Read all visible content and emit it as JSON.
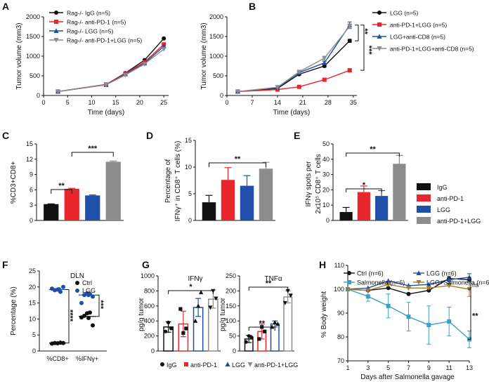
{
  "colors": {
    "black": "#111111",
    "red": "#e8262b",
    "blue": "#1f4fa8",
    "gray": "#8c8c8c",
    "teal": "#3aa0c8",
    "gold": "#a57c2c"
  },
  "panels": {
    "A": "A",
    "B": "B",
    "C": "C",
    "D": "D",
    "E": "E",
    "F": "F",
    "G": "G",
    "H": "H"
  },
  "chart_data": [
    {
      "id": "A",
      "type": "line",
      "xlabel": "Time (days)",
      "ylabel": "Tumor volume (mm3)",
      "xlim": [
        0,
        26
      ],
      "ylim": [
        0,
        2000
      ],
      "xticks": [
        0,
        5,
        10,
        15,
        20,
        25
      ],
      "yticks": [
        0,
        500,
        1000,
        1500,
        2000
      ],
      "x": [
        3,
        13,
        17,
        21,
        25
      ],
      "series": [
        {
          "name": "Rag-/- IgG (n=5)",
          "color": "#111111",
          "marker": "circle",
          "values": [
            100,
            280,
            570,
            900,
            1450
          ]
        },
        {
          "name": "Rag-/- anti-PD-1 (n=5)",
          "color": "#e8262b",
          "marker": "square",
          "values": [
            100,
            280,
            560,
            850,
            1300
          ]
        },
        {
          "name": "Rag-/- LGG (n=5)",
          "color": "#1f4fa8",
          "marker": "triangle",
          "values": [
            100,
            270,
            540,
            820,
            1250
          ]
        },
        {
          "name": "Rag-/- anti-PD-1+LGG (n=5)",
          "color": "#8c8c8c",
          "marker": "triangle-down",
          "values": [
            100,
            270,
            520,
            800,
            1180
          ]
        }
      ]
    },
    {
      "id": "B",
      "type": "line",
      "xlabel": "Time (days)",
      "ylabel": "Tumor volume (mm3)",
      "xlim": [
        0,
        36
      ],
      "ylim": [
        0,
        2000
      ],
      "xticks": [
        0,
        7,
        14,
        21,
        28,
        35
      ],
      "yticks": [
        0,
        500,
        1000,
        1500,
        2000
      ],
      "x": [
        3,
        14,
        20,
        27,
        34
      ],
      "series": [
        {
          "name": "LGG (n=5)",
          "color": "#111111",
          "marker": "circle",
          "values": [
            100,
            180,
            540,
            750,
            1390
          ]
        },
        {
          "name": "anti-PD-1+LGG (n=5)",
          "color": "#e8262b",
          "marker": "square",
          "values": [
            100,
            150,
            220,
            400,
            640
          ]
        },
        {
          "name": "LGG+anti-CD8 (n=5)",
          "color": "#1f4fa8",
          "marker": "triangle",
          "values": [
            100,
            200,
            580,
            830,
            1790
          ]
        },
        {
          "name": "anti-PD-1+LGG+anti-CD8 (n=5)",
          "color": "#8c8c8c",
          "marker": "triangle-down",
          "values": [
            100,
            210,
            600,
            950,
            1760
          ]
        }
      ],
      "annotations": [
        "**",
        "***"
      ]
    },
    {
      "id": "C",
      "type": "bar",
      "ylabel": "%CD3+CD8+",
      "ylim": [
        0,
        15
      ],
      "yticks": [
        0,
        3,
        6,
        9,
        12,
        15
      ],
      "categories": [
        "IgG",
        "anti-PD-1",
        "LGG",
        "anti-PD-1+LGG"
      ],
      "values": [
        3.2,
        6.2,
        4.9,
        11.5
      ],
      "errors": [
        0.05,
        0.1,
        0.1,
        0.15
      ],
      "annotations": [
        "**",
        "***"
      ]
    },
    {
      "id": "D",
      "type": "bar",
      "ylabel": "Percentage of IFNγ+ in CD8+ T cells (%)",
      "ylim": [
        0,
        15
      ],
      "yticks": [
        0,
        5,
        10,
        15
      ],
      "categories": [
        "IgG",
        "anti-PD-1",
        "LGG",
        "anti-PD-1+LGG"
      ],
      "values": [
        3.4,
        7.6,
        6.5,
        9.7
      ],
      "errors": [
        1.3,
        2.3,
        1.9,
        1.2
      ],
      "annotations": [
        "**"
      ]
    },
    {
      "id": "E",
      "type": "bar",
      "ylabel": "IFNγ spots per 2x10^5 CD8+ T cells",
      "ylim": [
        0,
        50
      ],
      "yticks": [
        0,
        10,
        20,
        30,
        40,
        50
      ],
      "categories": [
        "IgG",
        "anti-PD-1",
        "LGG",
        "anti-PD-1+LGG"
      ],
      "values": [
        5.5,
        18.5,
        16,
        37
      ],
      "errors": [
        3,
        4,
        3.5,
        5.5
      ],
      "legend": [
        "IgG",
        "anti-PD-1",
        "LGG",
        "anti-PD-1+LGG"
      ],
      "annotations": [
        "*",
        "**"
      ]
    },
    {
      "id": "F",
      "type": "scatter",
      "title": "DLN",
      "ylabel": "Percentage (%)",
      "ylim": [
        0,
        25
      ],
      "yticks": [
        0,
        5,
        10,
        15,
        20,
        25
      ],
      "categories": [
        "%CD8+",
        "%IFNγ+"
      ],
      "series": [
        {
          "name": "Ctrl",
          "color": "#111111",
          "group0": [
            2.3,
            2.5,
            2.4,
            2.6,
            2.5
          ],
          "group1": [
            10.5,
            11,
            11.8,
            12,
            8,
            10.3
          ],
          "mean": [
            2.5,
            10.8
          ]
        },
        {
          "name": "LGG",
          "color": "#1f4fa8",
          "group0": [
            19.5,
            19,
            19.2,
            18.5,
            20,
            19.3
          ],
          "group1": [
            15,
            17.5,
            18,
            17.8,
            17,
            17.5
          ],
          "mean": [
            19.2,
            17.5
          ]
        }
      ],
      "annotations": [
        "****",
        "***"
      ]
    },
    {
      "id": "G1",
      "type": "bar",
      "title": "IFNγ",
      "ylabel": "pg/g tumor",
      "ylim": [
        0,
        1000
      ],
      "yticks": [
        0,
        200,
        400,
        600,
        800,
        1000
      ],
      "categories": [
        "IgG",
        "anti-PD-1",
        "LGG",
        "anti-PD-1+LGG"
      ],
      "values": [
        320,
        360,
        580,
        690
      ],
      "errors": [
        70,
        170,
        120,
        120
      ],
      "annotations": [
        "*"
      ]
    },
    {
      "id": "G2",
      "type": "bar",
      "title": "TNFα",
      "ylabel": "pg/g tumor",
      "ylim": [
        0,
        250
      ],
      "yticks": [
        0,
        50,
        100,
        150,
        200,
        250
      ],
      "categories": [
        "IgG",
        "anti-PD-1",
        "LGG",
        "anti-PD-1+LGG"
      ],
      "values": [
        40,
        65,
        90,
        180
      ],
      "errors": [
        12,
        25,
        10,
        20
      ],
      "legend": [
        "IgG",
        "anti-PD-1",
        "LGG",
        "anti-PD-1+LGG"
      ],
      "annotations": [
        "**",
        "**"
      ]
    },
    {
      "id": "H",
      "type": "line",
      "xlabel": "Days after Salmonella gavage",
      "ylabel": "% Body weight",
      "xlim": [
        1,
        13
      ],
      "ylim": [
        70,
        110
      ],
      "xticks": [
        1,
        3,
        5,
        7,
        9,
        11,
        13
      ],
      "yticks": [
        70,
        80,
        90,
        100,
        110
      ],
      "x": [
        1,
        3,
        5,
        7,
        9,
        11,
        13
      ],
      "series": [
        {
          "name": "Ctrl (n=6)",
          "color": "#111111",
          "marker": "circle",
          "values": [
            100,
            99.5,
            100.5,
            98,
            99.5,
            104.5,
            104
          ]
        },
        {
          "name": "LGG (n=6)",
          "color": "#1f4fa8",
          "marker": "triangle",
          "values": [
            100,
            100.5,
            103.5,
            101.5,
            102,
            104,
            105
          ]
        },
        {
          "name": "Salmonella (n=6)",
          "color": "#3aa0c8",
          "marker": "square",
          "values": [
            100,
            97,
            93,
            88.5,
            85,
            86.5,
            79
          ]
        },
        {
          "name": "LGG+Salmonella (n=6)",
          "color": "#a57c2c",
          "marker": "triangle-down",
          "values": [
            100,
            99.5,
            102,
            100.5,
            100.5,
            101.5,
            100
          ]
        }
      ],
      "annotations": [
        "ns",
        "**"
      ]
    }
  ]
}
